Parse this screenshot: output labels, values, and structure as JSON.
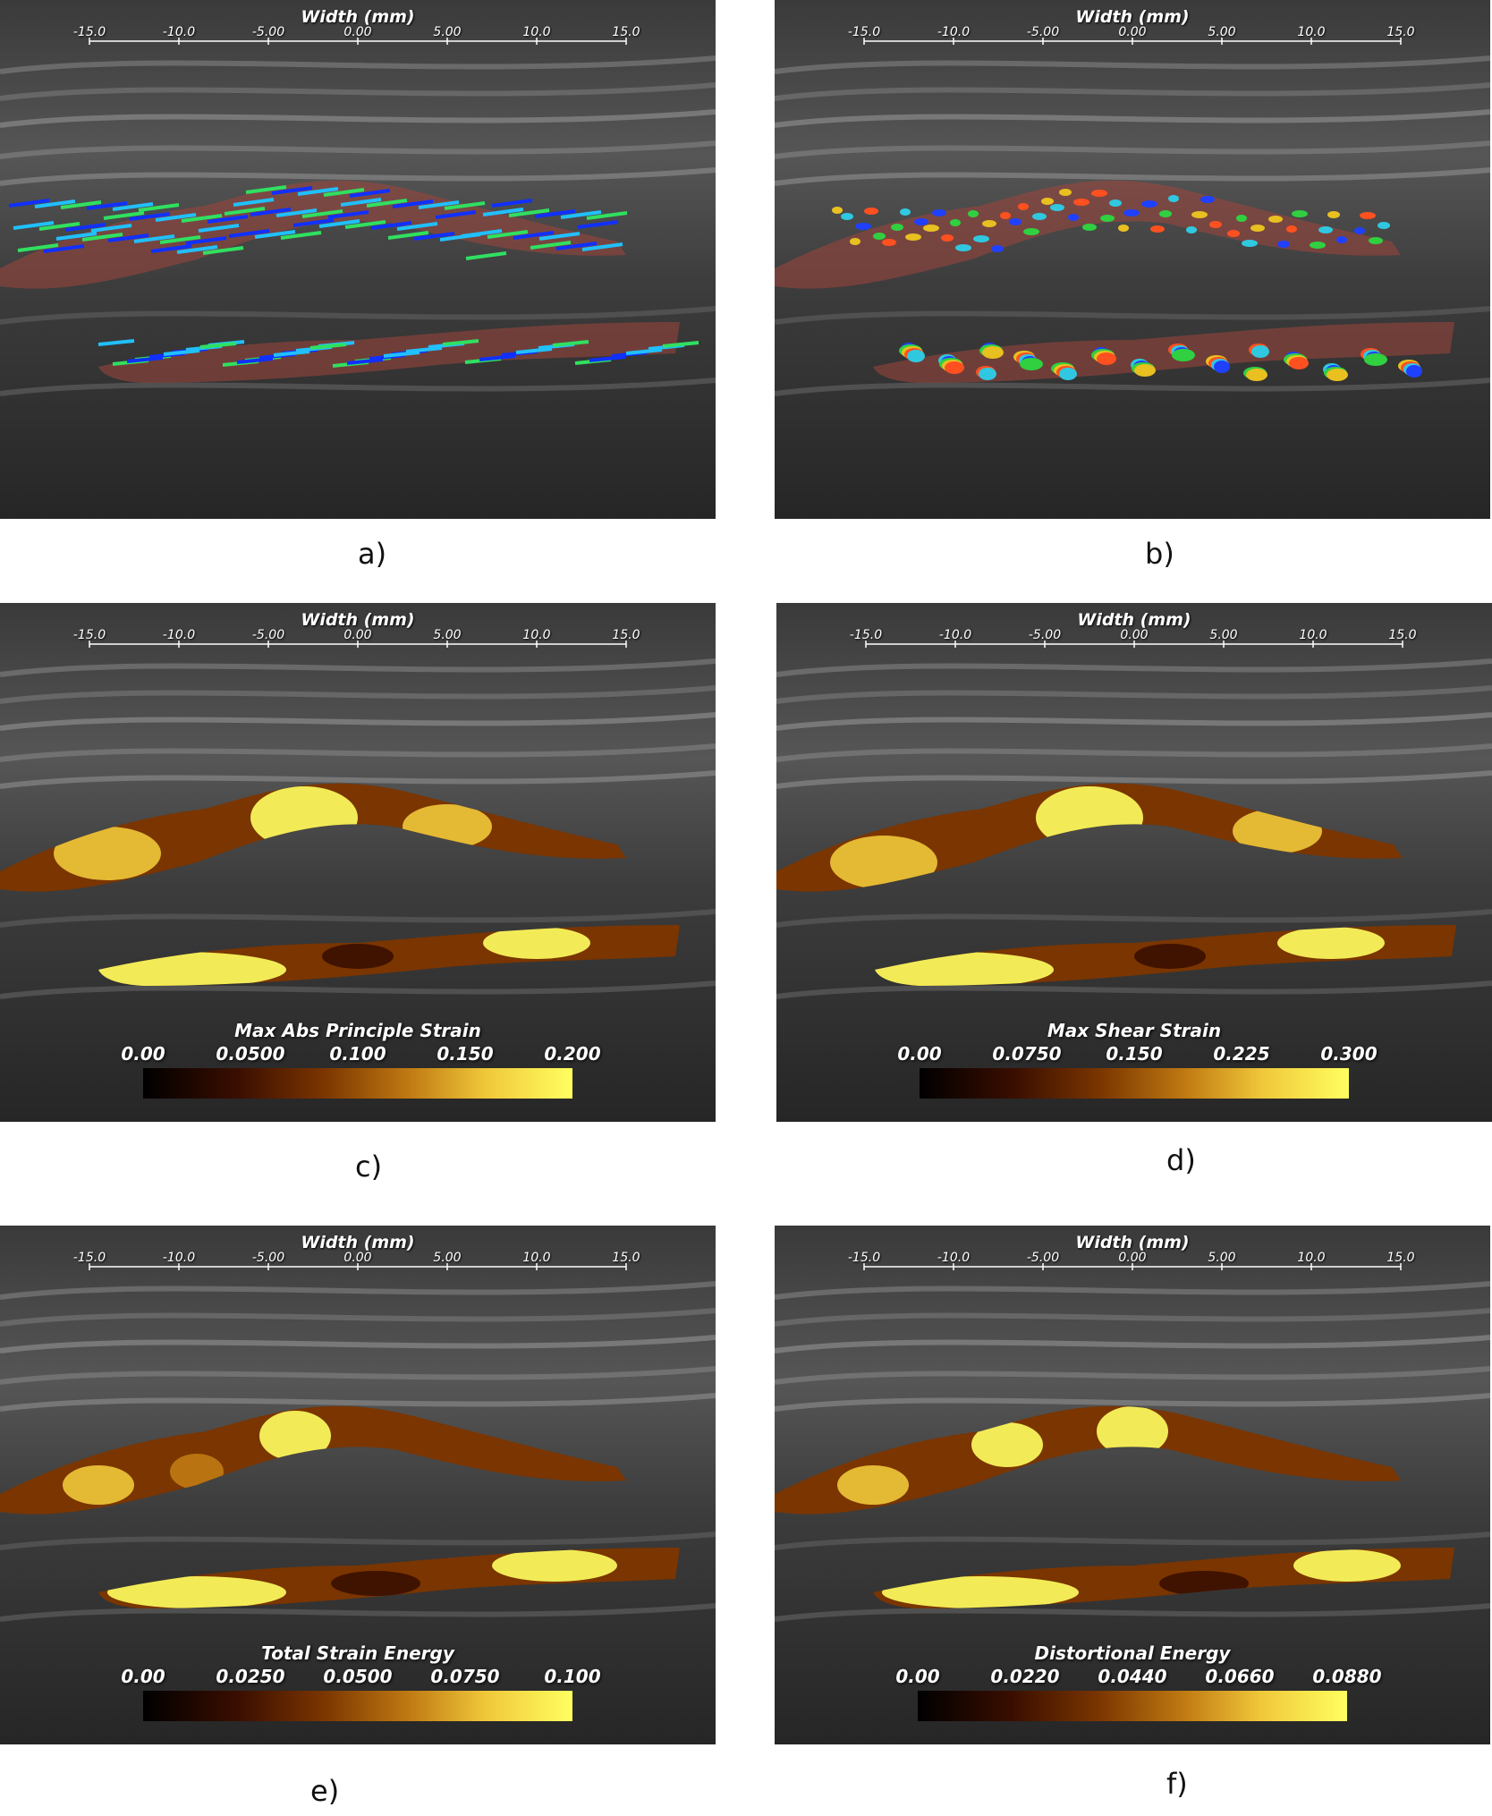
{
  "scale": {
    "title": "Width (mm)",
    "ticks": [
      "-15.0",
      "-10.0",
      "-5.00",
      "0.00",
      "5.00",
      "10.0",
      "15.0"
    ]
  },
  "panels": [
    {
      "caption": "a)",
      "colorbar": null
    },
    {
      "caption": "b)",
      "colorbar": null
    },
    {
      "caption": "c)",
      "colorbar": {
        "title": "Max Abs Principle Strain",
        "labels": [
          "0.00",
          "0.0500",
          "0.100",
          "0.150",
          "0.200"
        ]
      }
    },
    {
      "caption": "d)",
      "colorbar": {
        "title": "Max Shear Strain",
        "labels": [
          "0.00",
          "0.0750",
          "0.150",
          "0.225",
          "0.300"
        ]
      }
    },
    {
      "caption": "e)",
      "colorbar": {
        "title": "Total Strain Energy",
        "labels": [
          "0.00",
          "0.0250",
          "0.0500",
          "0.0750",
          "0.100"
        ]
      }
    },
    {
      "caption": "f)",
      "colorbar": {
        "title": "Distortional Energy",
        "labels": [
          "0.00",
          "0.0220",
          "0.0440",
          "0.0660",
          "0.0880"
        ]
      }
    }
  ],
  "colors": {
    "colormap": [
      "#000000",
      "#3a0e00",
      "#7a3500",
      "#c07a12",
      "#f0c83a",
      "#ffff60"
    ],
    "region_overlay": "#a0463c",
    "vector_colors": [
      "#1030ff",
      "#20c0ff",
      "#30e060"
    ],
    "glyph_colors": [
      "#e8c020",
      "#30d040",
      "#2040ff",
      "#30c8e0",
      "#ff5020"
    ]
  }
}
